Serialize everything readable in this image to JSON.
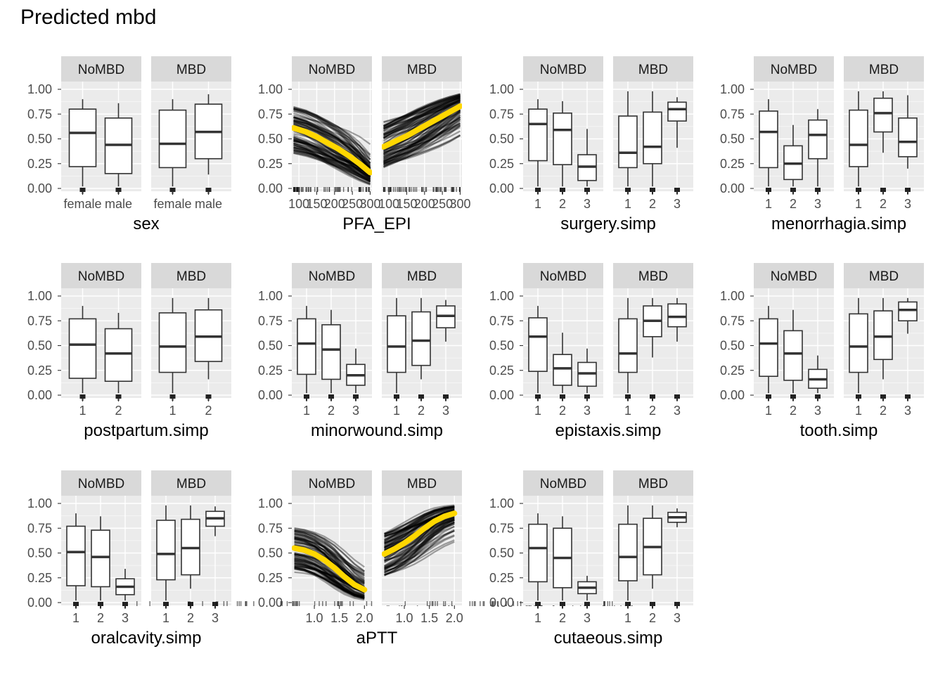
{
  "title": "Predicted mbd",
  "colors": {
    "panel_bg": "#EBEBEB",
    "strip_bg": "#D9D9D9",
    "grid": "#FFFFFF",
    "box": "#333333",
    "curves": "#000000",
    "mean_curve": "#FFD700",
    "text": "#4D4D4D"
  },
  "chart_data": {
    "type": "faceted_boxplot_and_line",
    "title": "Predicted mbd",
    "facet_labels": [
      "NoMBD",
      "MBD"
    ],
    "y_ticks": [
      "0.00",
      "0.25",
      "0.50",
      "0.75",
      "1.00"
    ],
    "ylim": [
      0,
      1
    ],
    "grid": true,
    "plots": [
      {
        "kind": "box",
        "xlabel": "sex",
        "categories": [
          "female",
          "male"
        ],
        "facets": [
          {
            "facet": "NoMBD",
            "boxes": [
              {
                "min": 0.02,
                "q1": 0.22,
                "median": 0.56,
                "q3": 0.8,
                "max": 0.9
              },
              {
                "min": 0.02,
                "q1": 0.15,
                "median": 0.44,
                "q3": 0.71,
                "max": 0.86
              }
            ]
          },
          {
            "facet": "MBD",
            "boxes": [
              {
                "min": 0.02,
                "q1": 0.21,
                "median": 0.45,
                "q3": 0.79,
                "max": 0.9
              },
              {
                "min": 0.14,
                "q1": 0.3,
                "median": 0.57,
                "q3": 0.85,
                "max": 0.95
              }
            ]
          }
        ]
      },
      {
        "kind": "line",
        "xlabel": "PFA_EPI",
        "x_ticks": [
          "100",
          "150",
          "200",
          "250",
          "300"
        ],
        "xlim": [
          80,
          305
        ],
        "facets": [
          {
            "facet": "NoMBD",
            "mean": {
              "x": [
                85,
                120,
                150,
                180,
                210,
                240,
                270,
                300
              ],
              "y": [
                0.61,
                0.57,
                0.52,
                0.46,
                0.4,
                0.33,
                0.25,
                0.16
              ]
            }
          },
          {
            "facet": "MBD",
            "mean": {
              "x": [
                85,
                120,
                150,
                180,
                210,
                240,
                270,
                300
              ],
              "y": [
                0.42,
                0.48,
                0.53,
                0.59,
                0.65,
                0.71,
                0.77,
                0.83
              ]
            }
          }
        ]
      },
      {
        "kind": "box",
        "xlabel": "surgery.simp",
        "categories": [
          "1",
          "2",
          "3"
        ],
        "facets": [
          {
            "facet": "NoMBD",
            "boxes": [
              {
                "min": 0.02,
                "q1": 0.28,
                "median": 0.65,
                "q3": 0.8,
                "max": 0.9
              },
              {
                "min": 0.02,
                "q1": 0.24,
                "median": 0.59,
                "q3": 0.76,
                "max": 0.88
              },
              {
                "min": 0.02,
                "q1": 0.08,
                "median": 0.22,
                "q3": 0.34,
                "max": 0.6
              }
            ]
          },
          {
            "facet": "MBD",
            "boxes": [
              {
                "min": 0.02,
                "q1": 0.21,
                "median": 0.36,
                "q3": 0.73,
                "max": 0.98
              },
              {
                "min": 0.02,
                "q1": 0.25,
                "median": 0.42,
                "q3": 0.77,
                "max": 0.98
              },
              {
                "min": 0.41,
                "q1": 0.68,
                "median": 0.8,
                "q3": 0.87,
                "max": 0.92
              }
            ]
          }
        ]
      },
      {
        "kind": "box",
        "xlabel": "menorrhagia.simp",
        "categories": [
          "1",
          "2",
          "3"
        ],
        "facets": [
          {
            "facet": "NoMBD",
            "boxes": [
              {
                "min": 0.02,
                "q1": 0.21,
                "median": 0.57,
                "q3": 0.78,
                "max": 0.9
              },
              {
                "min": 0.02,
                "q1": 0.09,
                "median": 0.25,
                "q3": 0.43,
                "max": 0.64
              },
              {
                "min": 0.02,
                "q1": 0.3,
                "median": 0.54,
                "q3": 0.69,
                "max": 0.8
              }
            ]
          },
          {
            "facet": "MBD",
            "boxes": [
              {
                "min": 0.02,
                "q1": 0.22,
                "median": 0.44,
                "q3": 0.79,
                "max": 0.98
              },
              {
                "min": 0.36,
                "q1": 0.57,
                "median": 0.76,
                "q3": 0.91,
                "max": 0.98
              },
              {
                "min": 0.2,
                "q1": 0.32,
                "median": 0.47,
                "q3": 0.71,
                "max": 0.94
              }
            ]
          }
        ]
      },
      {
        "kind": "box",
        "xlabel": "postpartum.simp",
        "categories": [
          "1",
          "2"
        ],
        "facets": [
          {
            "facet": "NoMBD",
            "boxes": [
              {
                "min": 0.02,
                "q1": 0.17,
                "median": 0.51,
                "q3": 0.77,
                "max": 0.9
              },
              {
                "min": 0.02,
                "q1": 0.14,
                "median": 0.42,
                "q3": 0.67,
                "max": 0.83
              }
            ]
          },
          {
            "facet": "MBD",
            "boxes": [
              {
                "min": 0.02,
                "q1": 0.23,
                "median": 0.49,
                "q3": 0.83,
                "max": 0.98
              },
              {
                "min": 0.16,
                "q1": 0.34,
                "median": 0.59,
                "q3": 0.86,
                "max": 0.98
              }
            ]
          }
        ]
      },
      {
        "kind": "box",
        "xlabel": "minorwound.simp",
        "categories": [
          "1",
          "2",
          "3"
        ],
        "facets": [
          {
            "facet": "NoMBD",
            "boxes": [
              {
                "min": 0.02,
                "q1": 0.21,
                "median": 0.52,
                "q3": 0.77,
                "max": 0.9
              },
              {
                "min": 0.02,
                "q1": 0.16,
                "median": 0.46,
                "q3": 0.71,
                "max": 0.86
              },
              {
                "min": 0.02,
                "q1": 0.1,
                "median": 0.2,
                "q3": 0.31,
                "max": 0.47
              }
            ]
          },
          {
            "facet": "MBD",
            "boxes": [
              {
                "min": 0.02,
                "q1": 0.23,
                "median": 0.49,
                "q3": 0.8,
                "max": 0.98
              },
              {
                "min": 0.16,
                "q1": 0.3,
                "median": 0.55,
                "q3": 0.84,
                "max": 0.98
              },
              {
                "min": 0.54,
                "q1": 0.68,
                "median": 0.8,
                "q3": 0.9,
                "max": 0.96
              }
            ]
          }
        ]
      },
      {
        "kind": "box",
        "xlabel": "epistaxis.simp",
        "categories": [
          "1",
          "2",
          "3"
        ],
        "facets": [
          {
            "facet": "NoMBD",
            "boxes": [
              {
                "min": 0.02,
                "q1": 0.24,
                "median": 0.59,
                "q3": 0.78,
                "max": 0.9
              },
              {
                "min": 0.02,
                "q1": 0.1,
                "median": 0.27,
                "q3": 0.41,
                "max": 0.63
              },
              {
                "min": 0.02,
                "q1": 0.09,
                "median": 0.22,
                "q3": 0.33,
                "max": 0.47
              }
            ]
          },
          {
            "facet": "MBD",
            "boxes": [
              {
                "min": 0.02,
                "q1": 0.23,
                "median": 0.42,
                "q3": 0.77,
                "max": 0.98
              },
              {
                "min": 0.38,
                "q1": 0.59,
                "median": 0.75,
                "q3": 0.9,
                "max": 0.98
              },
              {
                "min": 0.54,
                "q1": 0.69,
                "median": 0.79,
                "q3": 0.92,
                "max": 0.98
              }
            ]
          }
        ]
      },
      {
        "kind": "box",
        "xlabel": "tooth.simp",
        "categories": [
          "1",
          "2",
          "3"
        ],
        "facets": [
          {
            "facet": "NoMBD",
            "boxes": [
              {
                "min": 0.02,
                "q1": 0.19,
                "median": 0.52,
                "q3": 0.77,
                "max": 0.9
              },
              {
                "min": 0.02,
                "q1": 0.15,
                "median": 0.42,
                "q3": 0.65,
                "max": 0.86
              },
              {
                "min": 0.02,
                "q1": 0.07,
                "median": 0.16,
                "q3": 0.26,
                "max": 0.4
              }
            ]
          },
          {
            "facet": "MBD",
            "boxes": [
              {
                "min": 0.02,
                "q1": 0.23,
                "median": 0.49,
                "q3": 0.82,
                "max": 0.98
              },
              {
                "min": 0.16,
                "q1": 0.36,
                "median": 0.59,
                "q3": 0.85,
                "max": 0.98
              },
              {
                "min": 0.62,
                "q1": 0.75,
                "median": 0.86,
                "q3": 0.94,
                "max": 0.98
              }
            ]
          }
        ]
      },
      {
        "kind": "box",
        "xlabel": "oralcavity.simp",
        "categories": [
          "1",
          "2",
          "3"
        ],
        "facets": [
          {
            "facet": "NoMBD",
            "boxes": [
              {
                "min": 0.02,
                "q1": 0.17,
                "median": 0.51,
                "q3": 0.77,
                "max": 0.9
              },
              {
                "min": 0.02,
                "q1": 0.16,
                "median": 0.46,
                "q3": 0.73,
                "max": 0.87
              },
              {
                "min": 0.02,
                "q1": 0.08,
                "median": 0.16,
                "q3": 0.24,
                "max": 0.34
              }
            ]
          },
          {
            "facet": "MBD",
            "boxes": [
              {
                "min": 0.02,
                "q1": 0.23,
                "median": 0.49,
                "q3": 0.83,
                "max": 0.98
              },
              {
                "min": 0.14,
                "q1": 0.28,
                "median": 0.55,
                "q3": 0.84,
                "max": 0.98
              },
              {
                "min": 0.67,
                "q1": 0.77,
                "median": 0.85,
                "q3": 0.92,
                "max": 0.97
              }
            ]
          }
        ]
      },
      {
        "kind": "line",
        "xlabel": "aPTT",
        "x_ticks": [
          "1.0",
          "1.5",
          "2.0"
        ],
        "xlim": [
          0.55,
          2.15
        ],
        "facets": [
          {
            "facet": "NoMBD",
            "mean": {
              "x": [
                0.6,
                0.8,
                1.0,
                1.2,
                1.4,
                1.6,
                1.8,
                2.0
              ],
              "y": [
                0.55,
                0.53,
                0.49,
                0.43,
                0.35,
                0.26,
                0.18,
                0.13
              ]
            }
          },
          {
            "facet": "MBD",
            "mean": {
              "x": [
                0.6,
                0.8,
                1.0,
                1.2,
                1.4,
                1.6,
                1.8,
                2.0
              ],
              "y": [
                0.49,
                0.54,
                0.6,
                0.67,
                0.75,
                0.82,
                0.87,
                0.9
              ]
            }
          }
        ]
      },
      {
        "kind": "box",
        "xlabel": "cutaeous.simp",
        "categories": [
          "1",
          "2",
          "3"
        ],
        "facets": [
          {
            "facet": "NoMBD",
            "boxes": [
              {
                "min": 0.02,
                "q1": 0.21,
                "median": 0.55,
                "q3": 0.79,
                "max": 0.9
              },
              {
                "min": 0.02,
                "q1": 0.15,
                "median": 0.45,
                "q3": 0.75,
                "max": 0.87
              },
              {
                "min": 0.02,
                "q1": 0.09,
                "median": 0.15,
                "q3": 0.21,
                "max": 0.27
              }
            ]
          },
          {
            "facet": "MBD",
            "boxes": [
              {
                "min": 0.02,
                "q1": 0.22,
                "median": 0.46,
                "q3": 0.79,
                "max": 0.98
              },
              {
                "min": 0.14,
                "q1": 0.28,
                "median": 0.56,
                "q3": 0.85,
                "max": 0.98
              },
              {
                "min": 0.76,
                "q1": 0.81,
                "median": 0.86,
                "q3": 0.91,
                "max": 0.95
              }
            ]
          }
        ]
      }
    ]
  }
}
